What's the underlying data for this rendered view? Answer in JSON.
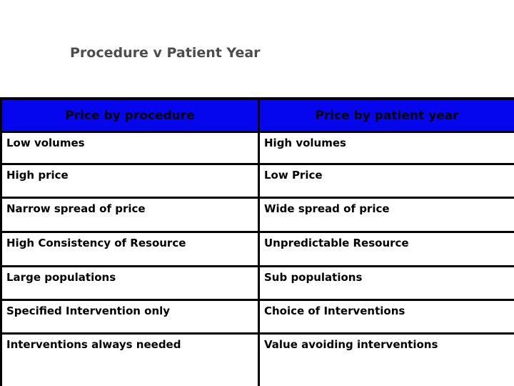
{
  "title": "Procedure v Patient Year",
  "table": {
    "headers": [
      "Price by procedure",
      "Price by patient year"
    ],
    "rows": [
      {
        "left": "Low volumes",
        "right": "High volumes"
      },
      {
        "left": "High price",
        "right": "Low Price"
      },
      {
        "left": "Narrow spread of price",
        "right": "Wide spread of price"
      },
      {
        "left": "High Consistency of Resource",
        "right": "Unpredictable Resource"
      },
      {
        "left": "Large populations",
        "right": "Sub populations"
      },
      {
        "left": "Specified Intervention only",
        "right": "Choice of Interventions"
      },
      {
        "left": "Interventions always needed",
        "right": "Value avoiding interventions"
      }
    ]
  },
  "colors": {
    "header_background": "#0606ee",
    "header_text": "#000000",
    "body_text": "#000000",
    "title_text": "#4d4d4d",
    "border": "#000000",
    "background": "#ffffff"
  }
}
